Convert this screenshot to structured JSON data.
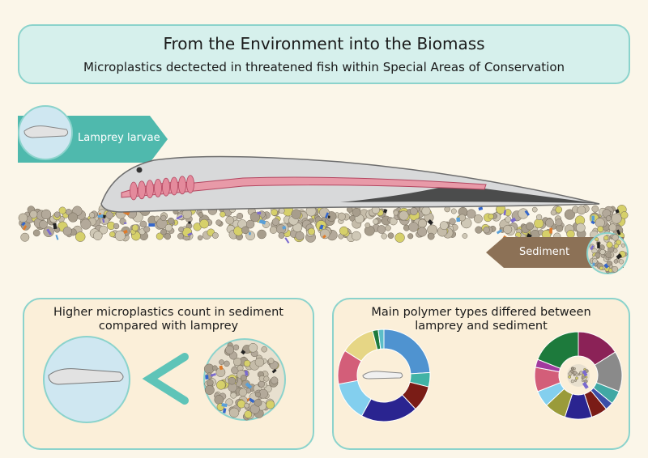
{
  "header": {
    "title": "From the Environment into the Biomass",
    "subtitle": "Microplastics dectected in threatened fish within Special Areas of Conservation"
  },
  "labels": {
    "lamprey_tag": "Lamprey larvae",
    "sediment_tag": "Sediment"
  },
  "panels": {
    "left_title_line1": "Higher microplastics count in sediment",
    "left_title_line2": "compared with lamprey",
    "right_title_line1": "Main polymer types differed between",
    "right_title_line2": "lamprey and sediment",
    "comparison_symbol": "<"
  },
  "donuts": {
    "lamprey": [
      {
        "value": 24,
        "color": "#4f93d0"
      },
      {
        "value": 5,
        "color": "#41b3a6"
      },
      {
        "value": 9,
        "color": "#7a1c16"
      },
      {
        "value": 20,
        "color": "#2a2490"
      },
      {
        "value": 14,
        "color": "#83cfee"
      },
      {
        "value": 12,
        "color": "#d35e79"
      },
      {
        "value": 12,
        "color": "#e6d685"
      },
      {
        "value": 2,
        "color": "#1d7a3c"
      },
      {
        "value": 2,
        "color": "#5bbec8"
      }
    ],
    "sediment": [
      {
        "value": 16,
        "color": "#8b2257"
      },
      {
        "value": 15,
        "color": "#8a8a8a"
      },
      {
        "value": 5,
        "color": "#41a8a4"
      },
      {
        "value": 3,
        "color": "#3b4ea8"
      },
      {
        "value": 6,
        "color": "#7a1c16"
      },
      {
        "value": 10,
        "color": "#2a2490"
      },
      {
        "value": 8,
        "color": "#9a9b3a"
      },
      {
        "value": 6,
        "color": "#83cfee"
      },
      {
        "value": 9,
        "color": "#d35e79"
      },
      {
        "value": 3,
        "color": "#a23a9e"
      },
      {
        "value": 19,
        "color": "#1d7a3c"
      }
    ]
  }
}
